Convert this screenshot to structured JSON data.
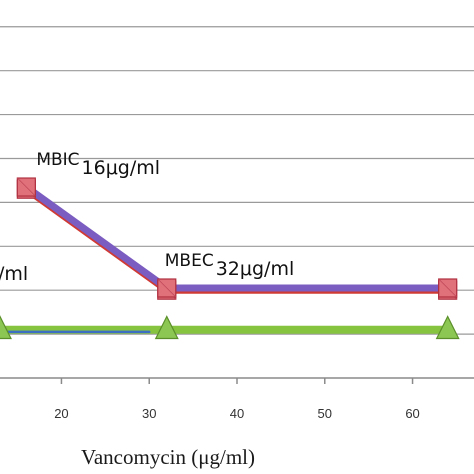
{
  "chart_data": {
    "type": "line",
    "xlabel": "Vancomycin (μg/ml)",
    "ylabel": "",
    "title": "",
    "xlim": [
      13,
      67
    ],
    "ylim": [
      0,
      8.2
    ],
    "x_ticks": [
      20,
      30,
      40,
      50,
      60
    ],
    "grid": true,
    "series": [
      {
        "color": "#d03a34",
        "marker": "square",
        "x": [
          16,
          32,
          64
        ],
        "y": [
          4.3,
          2.0,
          2.0
        ]
      },
      {
        "color": "#7b5cc0",
        "marker": "square",
        "x": [
          16,
          32,
          64
        ],
        "y": [
          4.35,
          2.05,
          2.05
        ]
      },
      {
        "color": "#86c440",
        "marker": "triangle",
        "x": [
          13,
          32,
          64
        ],
        "y": [
          1.1,
          1.1,
          1.1
        ]
      },
      {
        "color": "#3c6fc2",
        "marker": "none",
        "x": [
          13,
          30
        ],
        "y": [
          1.05,
          1.05
        ]
      }
    ],
    "annotations": [
      {
        "label": "MBIC",
        "value": "16μg/ml",
        "x": 16,
        "y": 4.3
      },
      {
        "label": "MBEC",
        "value": "32μg/ml",
        "x": 32,
        "y": 2.0
      },
      {
        "label": "",
        "value": "/ml",
        "x": 13,
        "y": 2.0
      }
    ]
  }
}
